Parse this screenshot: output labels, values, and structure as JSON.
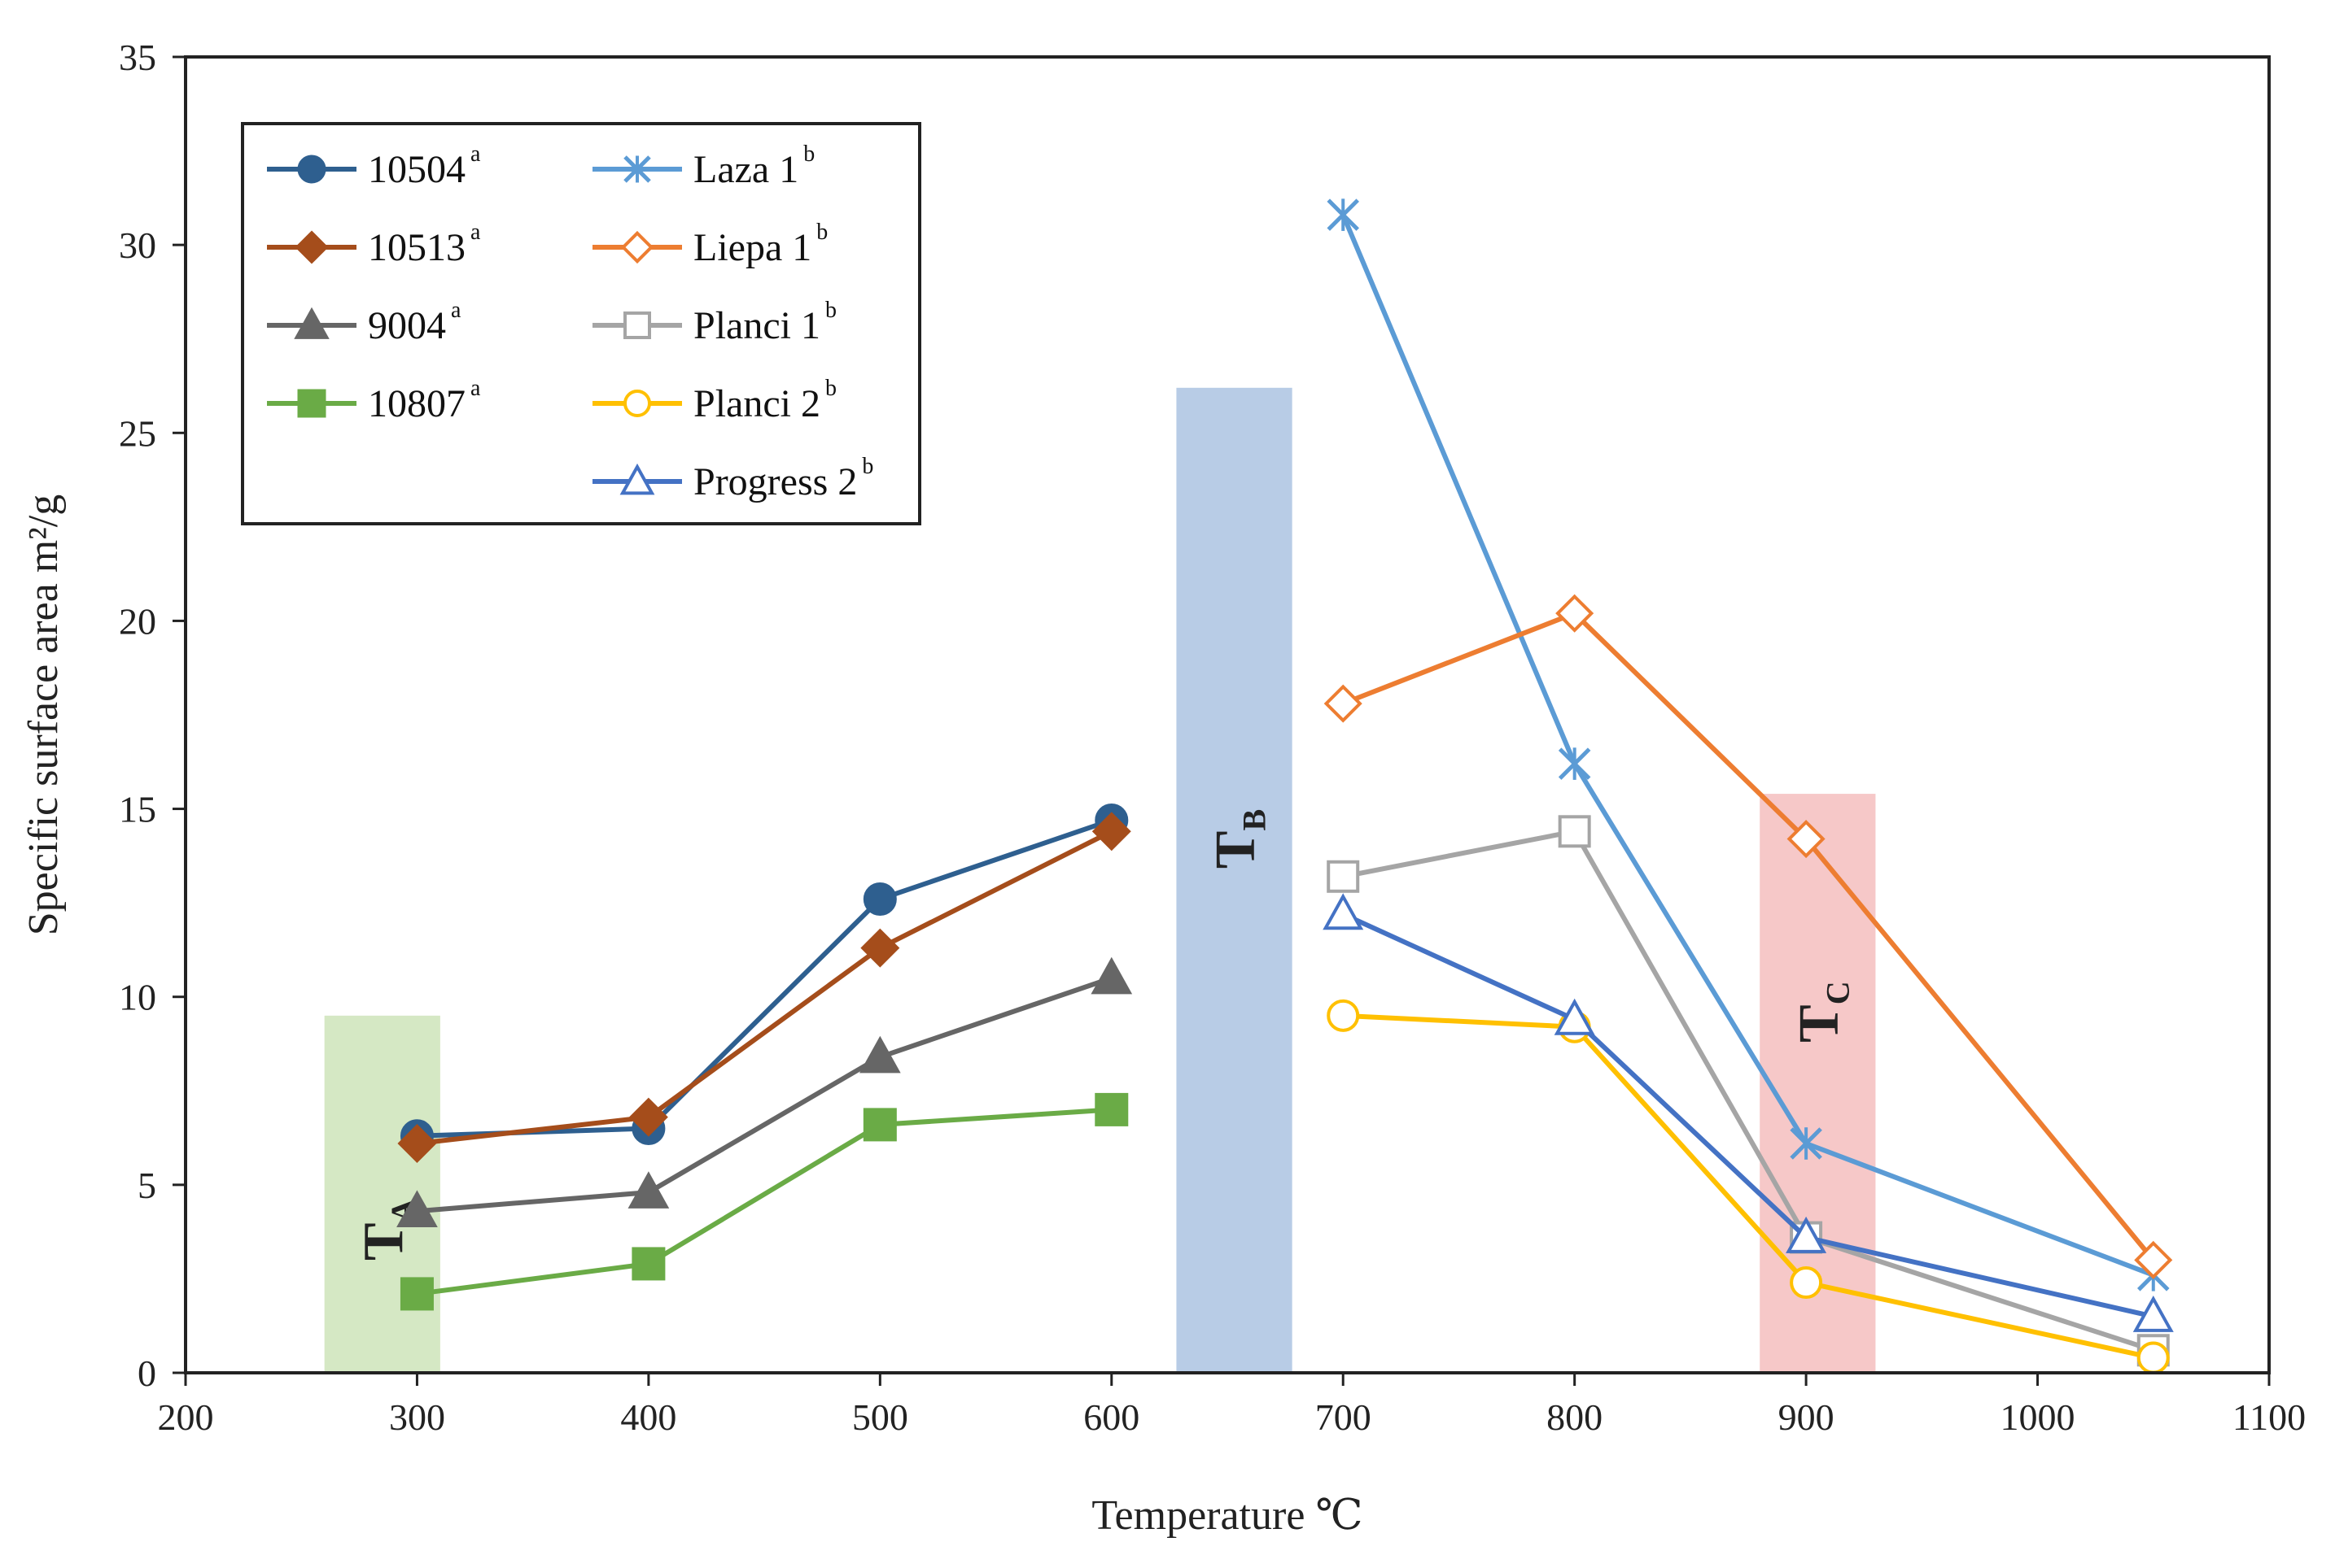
{
  "chart_data": {
    "type": "line",
    "title": "",
    "xlabel": "Temperature ℃",
    "ylabel": "Specific surface area  m²/g",
    "xlim": [
      200,
      1100
    ],
    "ylim": [
      0,
      35
    ],
    "xticks": [
      200,
      300,
      400,
      500,
      600,
      700,
      800,
      900,
      1000,
      1100
    ],
    "yticks": [
      0,
      5,
      10,
      15,
      20,
      25,
      30,
      35
    ],
    "grid": false,
    "legend_position": "top-left",
    "bands": [
      {
        "name": "T",
        "sub": "A",
        "x": [
          260,
          310
        ],
        "y": [
          0,
          9.5
        ],
        "color": "#d5e8c4"
      },
      {
        "name": "T",
        "sub": "B",
        "x": [
          628,
          678
        ],
        "y": [
          0,
          26.2
        ],
        "color": "#b8cce6"
      },
      {
        "name": "T",
        "sub": "C",
        "x": [
          880,
          930
        ],
        "y": [
          0,
          15.4
        ],
        "color": "#f6c8c8"
      }
    ],
    "series": [
      {
        "name": "10504",
        "sup": "a",
        "color": "#2e5f8f",
        "marker": "circle",
        "filled": true,
        "x": [
          300,
          400,
          500,
          600
        ],
        "values": [
          6.3,
          6.5,
          12.6,
          14.7
        ]
      },
      {
        "name": "10513",
        "sup": "a",
        "color": "#a54d1b",
        "marker": "diamond",
        "filled": true,
        "x": [
          300,
          400,
          500,
          600
        ],
        "values": [
          6.1,
          6.8,
          11.3,
          14.4
        ]
      },
      {
        "name": "9004",
        "sup": "a",
        "color": "#666666",
        "marker": "triangle",
        "filled": true,
        "x": [
          300,
          400,
          500,
          600
        ],
        "values": [
          4.3,
          4.8,
          8.4,
          10.5
        ]
      },
      {
        "name": "10807",
        "sup": "a",
        "color": "#6aab46",
        "marker": "square",
        "filled": true,
        "x": [
          300,
          400,
          500,
          600
        ],
        "values": [
          2.1,
          2.9,
          6.6,
          7.0
        ]
      },
      {
        "name": "Laza 1",
        "sup": "b",
        "color": "#5b9bd5",
        "marker": "star",
        "filled": false,
        "x": [
          700,
          800,
          900,
          1050
        ],
        "values": [
          30.8,
          16.2,
          6.1,
          2.6
        ]
      },
      {
        "name": "Liepa 1",
        "sup": "b",
        "color": "#ed7d31",
        "marker": "diamond",
        "filled": false,
        "x": [
          700,
          800,
          900,
          1050
        ],
        "values": [
          17.8,
          20.2,
          14.2,
          3.0
        ]
      },
      {
        "name": "Planci 1",
        "sup": "b",
        "color": "#a5a5a5",
        "marker": "square",
        "filled": false,
        "x": [
          700,
          800,
          900,
          1050
        ],
        "values": [
          13.2,
          14.4,
          3.6,
          0.6
        ]
      },
      {
        "name": "Planci 2",
        "sup": "b",
        "color": "#ffc000",
        "marker": "circle",
        "filled": false,
        "x": [
          700,
          800,
          900,
          1050
        ],
        "values": [
          9.5,
          9.2,
          2.4,
          0.4
        ]
      },
      {
        "name": "Progress 2",
        "sup": "b",
        "color": "#4472c4",
        "marker": "triangle",
        "filled": false,
        "x": [
          700,
          800,
          900,
          1050
        ],
        "values": [
          12.2,
          9.4,
          3.6,
          1.5
        ]
      }
    ]
  }
}
